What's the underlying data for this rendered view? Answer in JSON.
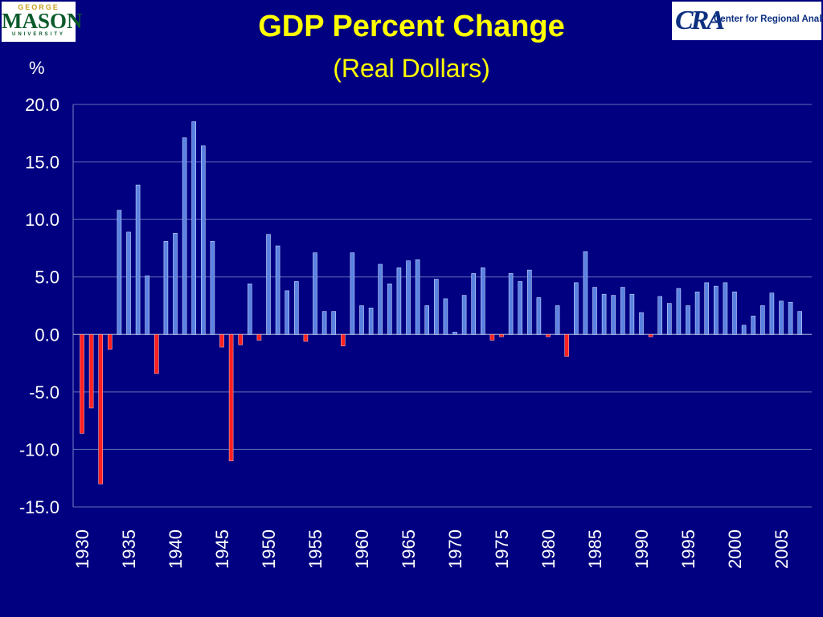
{
  "logos": {
    "left": {
      "top": "GEORGE",
      "main": "MASON",
      "bottom": "UNIVERSITY"
    },
    "right": {
      "mark": "CRA",
      "text": "Center for Regional Analysis"
    }
  },
  "chart_data": {
    "type": "bar",
    "title": "GDP Percent Change",
    "subtitle": "(Real Dollars)",
    "ylabel": "%",
    "xlabel": "",
    "ylim": [
      -15,
      20
    ],
    "yticks": [
      "20.0",
      "15.0",
      "10.0",
      "5.0",
      "0.0",
      "-5.0",
      "-10.0",
      "-15.0"
    ],
    "xticks": [
      "1930",
      "1935",
      "1940",
      "1945",
      "1950",
      "1955",
      "1960",
      "1965",
      "1970",
      "1975",
      "1980",
      "1985",
      "1990",
      "1995",
      "2000",
      "2005"
    ],
    "grid": true,
    "colors": {
      "positive": "#5a82e0",
      "negative": "#ff2020"
    },
    "x": [
      1930,
      1931,
      1932,
      1933,
      1934,
      1935,
      1936,
      1937,
      1938,
      1939,
      1940,
      1941,
      1942,
      1943,
      1944,
      1945,
      1946,
      1947,
      1948,
      1949,
      1950,
      1951,
      1952,
      1953,
      1954,
      1955,
      1956,
      1957,
      1958,
      1959,
      1960,
      1961,
      1962,
      1963,
      1964,
      1965,
      1966,
      1967,
      1968,
      1969,
      1970,
      1971,
      1972,
      1973,
      1974,
      1975,
      1976,
      1977,
      1978,
      1979,
      1980,
      1981,
      1982,
      1983,
      1984,
      1985,
      1986,
      1987,
      1988,
      1989,
      1990,
      1991,
      1992,
      1993,
      1994,
      1995,
      1996,
      1997,
      1998,
      1999,
      2000,
      2001,
      2002,
      2003,
      2004,
      2005,
      2006,
      2007
    ],
    "values": [
      -8.6,
      -6.4,
      -13.0,
      -1.3,
      10.8,
      8.9,
      13.0,
      5.1,
      -3.4,
      8.1,
      8.8,
      17.1,
      18.5,
      16.4,
      8.1,
      -1.1,
      -11.0,
      -0.9,
      4.4,
      -0.5,
      8.7,
      7.7,
      3.8,
      4.6,
      -0.6,
      7.1,
      2.0,
      2.0,
      -1.0,
      7.1,
      2.5,
      2.3,
      6.1,
      4.4,
      5.8,
      6.4,
      6.5,
      2.5,
      4.8,
      3.1,
      0.2,
      3.4,
      5.3,
      5.8,
      -0.5,
      -0.2,
      5.3,
      4.6,
      5.6,
      3.2,
      -0.2,
      2.5,
      -1.9,
      4.5,
      7.2,
      4.1,
      3.5,
      3.4,
      4.1,
      3.5,
      1.9,
      -0.2,
      3.3,
      2.7,
      4.0,
      2.5,
      3.7,
      4.5,
      4.2,
      4.5,
      3.7,
      0.8,
      1.6,
      2.5,
      3.6,
      2.9,
      2.8,
      2.0
    ]
  }
}
